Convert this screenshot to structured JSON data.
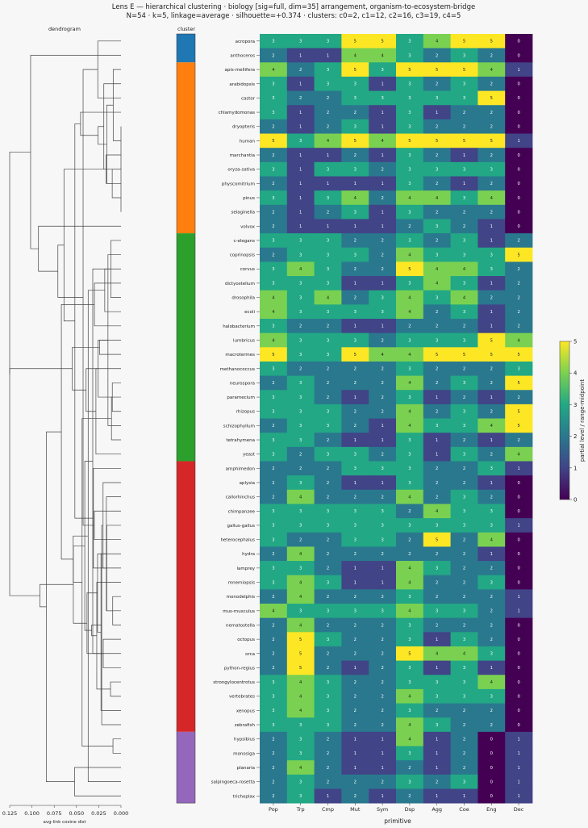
{
  "chart_data": {
    "type": "heatmap",
    "title": "Lens E — hierarchical clustering · biology [sig=full, dim=35] arrangement, organism-to-ecosystem-bridge",
    "subtitle": "N=54 · k=5, linkage=average · silhouette=+0.374 · clusters: c0=2, c1=12, c2=16, c3=19, c4=5",
    "dendrogram_title": "dendrogram",
    "cluster_title": "cluster",
    "xlabel": "primitive",
    "dendro_xlabel": "avg-link cosine dist",
    "dendro_ticks": [
      "0.125",
      "0.100",
      "0.075",
      "0.050",
      "0.025",
      "0.000"
    ],
    "colorbar_label": "partial level / range-midpoint",
    "colorbar_ticks": [
      "0",
      "1",
      "2",
      "3",
      "4",
      "5"
    ],
    "value_range": [
      0,
      5
    ],
    "columns": [
      "Pop",
      "Trp",
      "Cmp",
      "Mut",
      "Sym",
      "Dsp",
      "Agg",
      "Coe",
      "Eng",
      "Dec"
    ],
    "cluster_colors": [
      "#1f77b4",
      "#ff7f0e",
      "#2ca02c",
      "#d62728",
      "#9467bd"
    ],
    "rows": [
      {
        "name": "acropora",
        "cluster": 0,
        "values": [
          3,
          3,
          3,
          5,
          5,
          3,
          4,
          5,
          5,
          0
        ]
      },
      {
        "name": "anthoceros",
        "cluster": 0,
        "values": [
          2,
          1,
          1,
          4,
          4,
          3,
          2,
          3,
          2,
          0
        ]
      },
      {
        "name": "apis-mellifera",
        "cluster": 1,
        "values": [
          4,
          2,
          3,
          5,
          3,
          5,
          5,
          5,
          4,
          1
        ]
      },
      {
        "name": "arabidopsis",
        "cluster": 1,
        "values": [
          3,
          1,
          3,
          3,
          1,
          3,
          2,
          3,
          2,
          0
        ]
      },
      {
        "name": "castor",
        "cluster": 1,
        "values": [
          3,
          2,
          2,
          3,
          3,
          3,
          3,
          3,
          5,
          0
        ]
      },
      {
        "name": "chlamydomonas",
        "cluster": 1,
        "values": [
          3,
          1,
          2,
          2,
          1,
          3,
          1,
          2,
          2,
          0
        ]
      },
      {
        "name": "dryopteris",
        "cluster": 1,
        "values": [
          2,
          1,
          2,
          3,
          1,
          3,
          2,
          2,
          2,
          0
        ]
      },
      {
        "name": "human",
        "cluster": 1,
        "values": [
          5,
          3,
          4,
          5,
          4,
          5,
          5,
          5,
          5,
          1
        ]
      },
      {
        "name": "marchantia",
        "cluster": 1,
        "values": [
          2,
          1,
          1,
          2,
          1,
          3,
          2,
          1,
          2,
          0
        ]
      },
      {
        "name": "oryza-sativa",
        "cluster": 1,
        "values": [
          3,
          1,
          3,
          3,
          2,
          3,
          3,
          3,
          3,
          0
        ]
      },
      {
        "name": "physcomitrium",
        "cluster": 1,
        "values": [
          2,
          1,
          1,
          1,
          1,
          3,
          2,
          1,
          2,
          0
        ]
      },
      {
        "name": "pinus",
        "cluster": 1,
        "values": [
          3,
          1,
          3,
          4,
          2,
          4,
          4,
          3,
          4,
          0
        ]
      },
      {
        "name": "selaginella",
        "cluster": 1,
        "values": [
          2,
          1,
          2,
          3,
          1,
          3,
          2,
          2,
          2,
          0
        ]
      },
      {
        "name": "volvox",
        "cluster": 1,
        "values": [
          2,
          1,
          1,
          1,
          1,
          2,
          3,
          2,
          1,
          0
        ]
      },
      {
        "name": "c-elegans",
        "cluster": 2,
        "values": [
          3,
          3,
          3,
          2,
          2,
          3,
          2,
          3,
          1,
          2
        ]
      },
      {
        "name": "coprinopsis",
        "cluster": 2,
        "values": [
          2,
          3,
          3,
          3,
          2,
          4,
          3,
          3,
          3,
          5
        ]
      },
      {
        "name": "corvus",
        "cluster": 2,
        "values": [
          3,
          4,
          3,
          2,
          2,
          5,
          4,
          4,
          3,
          2
        ]
      },
      {
        "name": "dictyostelium",
        "cluster": 2,
        "values": [
          3,
          3,
          3,
          1,
          1,
          3,
          4,
          3,
          1,
          2
        ]
      },
      {
        "name": "drosophila",
        "cluster": 2,
        "values": [
          4,
          3,
          4,
          2,
          3,
          4,
          3,
          4,
          2,
          2
        ]
      },
      {
        "name": "ecoli",
        "cluster": 2,
        "values": [
          4,
          3,
          3,
          3,
          3,
          4,
          2,
          3,
          1,
          2
        ]
      },
      {
        "name": "halobacterium",
        "cluster": 2,
        "values": [
          3,
          2,
          2,
          1,
          1,
          2,
          2,
          2,
          1,
          2
        ]
      },
      {
        "name": "lumbricus",
        "cluster": 2,
        "values": [
          4,
          3,
          3,
          3,
          2,
          3,
          3,
          3,
          5,
          4
        ]
      },
      {
        "name": "macrotermes",
        "cluster": 2,
        "values": [
          5,
          3,
          3,
          5,
          4,
          4,
          5,
          5,
          5,
          5
        ]
      },
      {
        "name": "methanococcus",
        "cluster": 2,
        "values": [
          3,
          2,
          2,
          2,
          2,
          3,
          2,
          2,
          2,
          3
        ]
      },
      {
        "name": "neurospora",
        "cluster": 2,
        "values": [
          2,
          3,
          2,
          2,
          2,
          4,
          2,
          3,
          2,
          5
        ]
      },
      {
        "name": "paramecium",
        "cluster": 2,
        "values": [
          3,
          3,
          2,
          1,
          2,
          3,
          1,
          2,
          1,
          2
        ]
      },
      {
        "name": "rhizopus",
        "cluster": 2,
        "values": [
          3,
          3,
          3,
          2,
          2,
          4,
          2,
          3,
          2,
          5
        ]
      },
      {
        "name": "schizophyllum",
        "cluster": 2,
        "values": [
          2,
          3,
          3,
          2,
          1,
          4,
          3,
          3,
          4,
          5
        ]
      },
      {
        "name": "tetrahymena",
        "cluster": 2,
        "values": [
          3,
          3,
          2,
          1,
          1,
          3,
          1,
          2,
          1,
          2
        ]
      },
      {
        "name": "yeast",
        "cluster": 2,
        "values": [
          3,
          2,
          3,
          3,
          2,
          3,
          1,
          3,
          2,
          4
        ]
      },
      {
        "name": "amphimedon",
        "cluster": 3,
        "values": [
          2,
          2,
          2,
          3,
          3,
          3,
          2,
          2,
          3,
          1
        ]
      },
      {
        "name": "aplysia",
        "cluster": 3,
        "values": [
          2,
          3,
          2,
          1,
          1,
          3,
          2,
          2,
          1,
          0
        ]
      },
      {
        "name": "callorhinchus",
        "cluster": 3,
        "values": [
          2,
          4,
          2,
          2,
          2,
          4,
          2,
          3,
          2,
          0
        ]
      },
      {
        "name": "chimpanzee",
        "cluster": 3,
        "values": [
          3,
          3,
          3,
          3,
          3,
          2,
          4,
          3,
          3,
          0
        ]
      },
      {
        "name": "gallus-gallus",
        "cluster": 3,
        "values": [
          3,
          3,
          3,
          3,
          3,
          3,
          3,
          3,
          3,
          1
        ]
      },
      {
        "name": "heterocephalus",
        "cluster": 3,
        "values": [
          3,
          2,
          2,
          3,
          3,
          2,
          5,
          2,
          4,
          0
        ]
      },
      {
        "name": "hydra",
        "cluster": 3,
        "values": [
          2,
          4,
          2,
          2,
          2,
          2,
          2,
          2,
          1,
          0
        ]
      },
      {
        "name": "lamprey",
        "cluster": 3,
        "values": [
          3,
          3,
          2,
          1,
          1,
          4,
          3,
          2,
          2,
          0
        ]
      },
      {
        "name": "mnemiopsis",
        "cluster": 3,
        "values": [
          3,
          4,
          3,
          1,
          1,
          4,
          2,
          2,
          3,
          0
        ]
      },
      {
        "name": "monodelphis",
        "cluster": 3,
        "values": [
          2,
          4,
          2,
          2,
          2,
          3,
          2,
          2,
          2,
          1
        ]
      },
      {
        "name": "mus-musculus",
        "cluster": 3,
        "values": [
          4,
          3,
          3,
          3,
          3,
          4,
          3,
          3,
          2,
          1
        ]
      },
      {
        "name": "nematostella",
        "cluster": 3,
        "values": [
          2,
          4,
          2,
          2,
          2,
          3,
          2,
          2,
          2,
          0
        ]
      },
      {
        "name": "octopus",
        "cluster": 3,
        "values": [
          2,
          5,
          3,
          2,
          2,
          3,
          1,
          3,
          2,
          0
        ]
      },
      {
        "name": "orca",
        "cluster": 3,
        "values": [
          2,
          5,
          2,
          2,
          2,
          5,
          4,
          4,
          3,
          0
        ]
      },
      {
        "name": "python-regius",
        "cluster": 3,
        "values": [
          2,
          5,
          2,
          1,
          2,
          3,
          1,
          3,
          1,
          0
        ]
      },
      {
        "name": "strongylocentrotus",
        "cluster": 3,
        "values": [
          3,
          4,
          3,
          2,
          2,
          3,
          3,
          3,
          4,
          0
        ]
      },
      {
        "name": "vertebrates",
        "cluster": 3,
        "values": [
          3,
          4,
          3,
          2,
          2,
          4,
          3,
          3,
          3,
          0
        ]
      },
      {
        "name": "xenopus",
        "cluster": 3,
        "values": [
          3,
          4,
          3,
          2,
          2,
          3,
          2,
          2,
          2,
          0
        ]
      },
      {
        "name": "zebrafish",
        "cluster": 3,
        "values": [
          3,
          3,
          3,
          2,
          2,
          4,
          3,
          2,
          2,
          0
        ]
      },
      {
        "name": "hypsibius",
        "cluster": 4,
        "values": [
          2,
          3,
          2,
          1,
          1,
          4,
          1,
          2,
          0,
          1
        ]
      },
      {
        "name": "monosiga",
        "cluster": 4,
        "values": [
          2,
          3,
          2,
          1,
          1,
          3,
          1,
          2,
          0,
          1
        ]
      },
      {
        "name": "planaria",
        "cluster": 4,
        "values": [
          2,
          4,
          2,
          1,
          1,
          2,
          1,
          2,
          0,
          1
        ]
      },
      {
        "name": "salpingoeca-rosetta",
        "cluster": 4,
        "values": [
          2,
          3,
          2,
          2,
          2,
          3,
          2,
          3,
          0,
          1
        ]
      },
      {
        "name": "trichoplax",
        "cluster": 4,
        "values": [
          2,
          3,
          1,
          2,
          1,
          2,
          1,
          1,
          0,
          1
        ]
      }
    ]
  }
}
